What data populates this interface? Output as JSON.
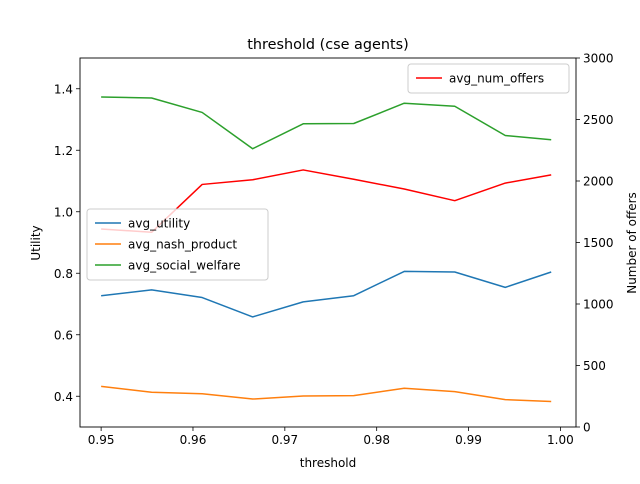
{
  "chart_data": {
    "type": "line",
    "title": "threshold (cse agents)",
    "xlabel": "threshold",
    "ylabel": "Utility",
    "y2label": "Number of offers",
    "xlim": [
      0.9477,
      1.0017
    ],
    "ylim": [
      0.3,
      1.5
    ],
    "y2lim": [
      0,
      3000
    ],
    "x_ticks": [
      "0.95",
      "0.96",
      "0.97",
      "0.98",
      "0.99",
      "1.00"
    ],
    "x_tick_values": [
      0.95,
      0.96,
      0.97,
      0.98,
      0.99,
      1.0
    ],
    "y_ticks": [
      "0.4",
      "0.6",
      "0.8",
      "1.0",
      "1.2",
      "1.4"
    ],
    "y_tick_values": [
      0.4,
      0.6,
      0.8,
      1.0,
      1.2,
      1.4
    ],
    "y2_ticks": [
      "0",
      "500",
      "1000",
      "1500",
      "2000",
      "2500",
      "3000"
    ],
    "y2_tick_values": [
      0,
      500,
      1000,
      1500,
      2000,
      2500,
      3000
    ],
    "x": [
      0.95,
      0.9555,
      0.961,
      0.9665,
      0.972,
      0.9775,
      0.983,
      0.9885,
      0.994,
      0.999
    ],
    "series": [
      {
        "name": "avg_utility",
        "axis": "left",
        "color": "#1f77b4",
        "values": [
          0.727,
          0.746,
          0.721,
          0.658,
          0.707,
          0.727,
          0.806,
          0.804,
          0.754,
          0.804
        ]
      },
      {
        "name": "avg_nash_product",
        "axis": "left",
        "color": "#ff7f0e",
        "values": [
          0.432,
          0.413,
          0.408,
          0.391,
          0.401,
          0.402,
          0.426,
          0.415,
          0.389,
          0.383
        ]
      },
      {
        "name": "avg_social_welfare",
        "axis": "left",
        "color": "#2ca02c",
        "values": [
          1.373,
          1.37,
          1.323,
          1.205,
          1.286,
          1.287,
          1.353,
          1.343,
          1.248,
          1.234
        ]
      },
      {
        "name": "avg_num_offers",
        "axis": "right",
        "color": "#ff0000",
        "values": [
          1610,
          1583,
          1972,
          2010,
          2090,
          2014,
          1935,
          1840,
          1983,
          2050
        ]
      }
    ],
    "legend_left_placement": "center-left",
    "legend_right_placement": "top-right",
    "grid": false
  }
}
